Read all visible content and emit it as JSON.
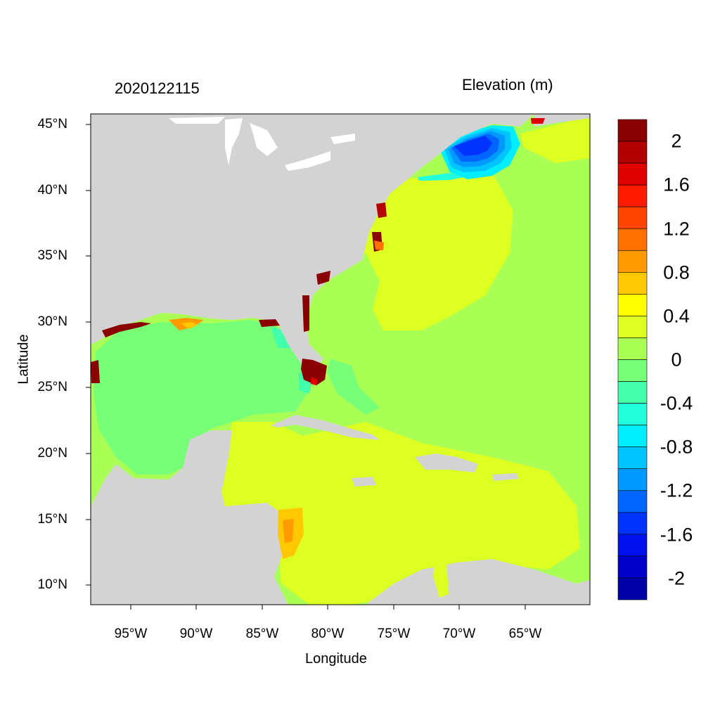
{
  "map": {
    "timestamp": "2020122115",
    "variable_title": "Elevation (m)",
    "x_axis_label": "Longitude",
    "y_axis_label": "Latitude",
    "lat_ticks": [
      "45°N",
      "40°N",
      "35°N",
      "30°N",
      "25°N",
      "20°N",
      "15°N",
      "10°N"
    ],
    "lon_ticks": [
      "95°W",
      "90°W",
      "85°W",
      "80°W",
      "75°W",
      "70°W",
      "65°W"
    ],
    "lat_range": [
      8.5,
      45.8
    ],
    "lon_range": [
      -98,
      -60
    ],
    "land_color": "#d3d3d3",
    "ocean_background_value": "0 to 0.4"
  },
  "colorbar": {
    "labels": [
      "2",
      "1.6",
      "1.2",
      "0.8",
      "0.4",
      "0",
      "-0.4",
      "-0.8",
      "-1.2",
      "-1.6",
      "-2"
    ],
    "colors": [
      "#8b0000",
      "#b30000",
      "#e00000",
      "#ff1a00",
      "#ff4400",
      "#ff7000",
      "#ff9a00",
      "#ffc800",
      "#ffff00",
      "#ddff22",
      "#aaff55",
      "#77ff77",
      "#44ffaa",
      "#22ffdd",
      "#00eeff",
      "#00c4ff",
      "#0099ff",
      "#0066ff",
      "#0033ff",
      "#0011ee",
      "#0000cc",
      "#0000a8"
    ]
  }
}
